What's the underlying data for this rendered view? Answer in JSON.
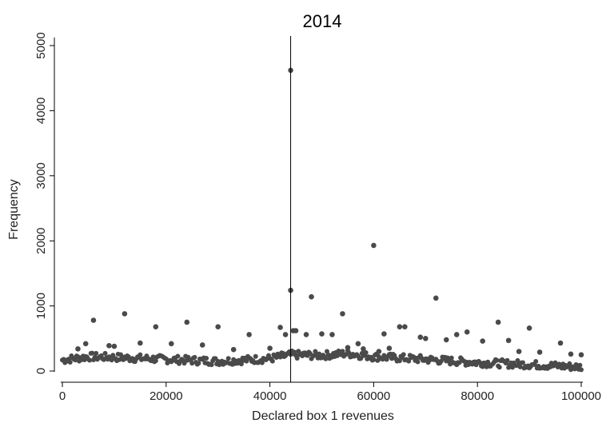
{
  "chart_data": {
    "type": "scatter",
    "title": "2014",
    "xlabel": "Declared box 1 revenues",
    "ylabel": "Frequency",
    "xlim": [
      0,
      100000
    ],
    "ylim": [
      0,
      5000
    ],
    "xticks": [
      0,
      20000,
      40000,
      60000,
      80000,
      100000
    ],
    "yticks": [
      0,
      1000,
      2000,
      3000,
      4000,
      5000
    ],
    "xtick_labels": [
      "0",
      "20000",
      "40000",
      "60000",
      "80000",
      "100000"
    ],
    "ytick_labels": [
      "0",
      "1000",
      "2000",
      "3000",
      "4000",
      "5000"
    ],
    "grid": false,
    "reference_line_x": 44000,
    "marker_color": "#4a4a4a",
    "series": [
      {
        "points": [
          [
            44000,
            4620
          ],
          [
            60000,
            1930
          ],
          [
            44000,
            1240
          ],
          [
            48000,
            1140
          ],
          [
            72000,
            1120
          ],
          [
            12000,
            880
          ],
          [
            54000,
            880
          ],
          [
            6000,
            780
          ],
          [
            24000,
            750
          ],
          [
            84000,
            750
          ],
          [
            18000,
            680
          ],
          [
            30000,
            680
          ],
          [
            42000,
            670
          ],
          [
            66000,
            680
          ],
          [
            65000,
            680
          ],
          [
            90000,
            660
          ],
          [
            45000,
            620
          ],
          [
            44500,
            620
          ],
          [
            47000,
            560
          ],
          [
            50000,
            570
          ],
          [
            52000,
            560
          ],
          [
            43000,
            560
          ],
          [
            36000,
            560
          ],
          [
            62000,
            570
          ],
          [
            78000,
            600
          ],
          [
            76000,
            560
          ],
          [
            96000,
            430
          ],
          [
            15000,
            430
          ],
          [
            21000,
            420
          ],
          [
            27000,
            400
          ],
          [
            9000,
            390
          ],
          [
            10000,
            380
          ],
          [
            69000,
            520
          ],
          [
            70000,
            500
          ],
          [
            74000,
            480
          ],
          [
            86000,
            470
          ],
          [
            81000,
            460
          ],
          [
            55000,
            360
          ],
          [
            58000,
            340
          ],
          [
            40000,
            350
          ],
          [
            33000,
            330
          ],
          [
            3000,
            340
          ],
          [
            63000,
            350
          ],
          [
            88000,
            300
          ],
          [
            92000,
            290
          ],
          [
            98000,
            260
          ],
          [
            100000,
            250
          ],
          [
            4500,
            420
          ],
          [
            57000,
            420
          ],
          [
            61000,
            300
          ]
        ],
        "band": {
          "x_start": 0,
          "x_end": 100000,
          "step": 250,
          "description_baseline": [
            [
              0,
              170
            ],
            [
              5000,
              220
            ],
            [
              10000,
              210
            ],
            [
              20000,
              180
            ],
            [
              30000,
              150
            ],
            [
              40000,
              190
            ],
            [
              44000,
              250
            ],
            [
              50000,
              240
            ],
            [
              55000,
              270
            ],
            [
              60000,
              220
            ],
            [
              70000,
              180
            ],
            [
              80000,
              130
            ],
            [
              90000,
              100
            ],
            [
              100000,
              60
            ]
          ]
        }
      }
    ]
  }
}
